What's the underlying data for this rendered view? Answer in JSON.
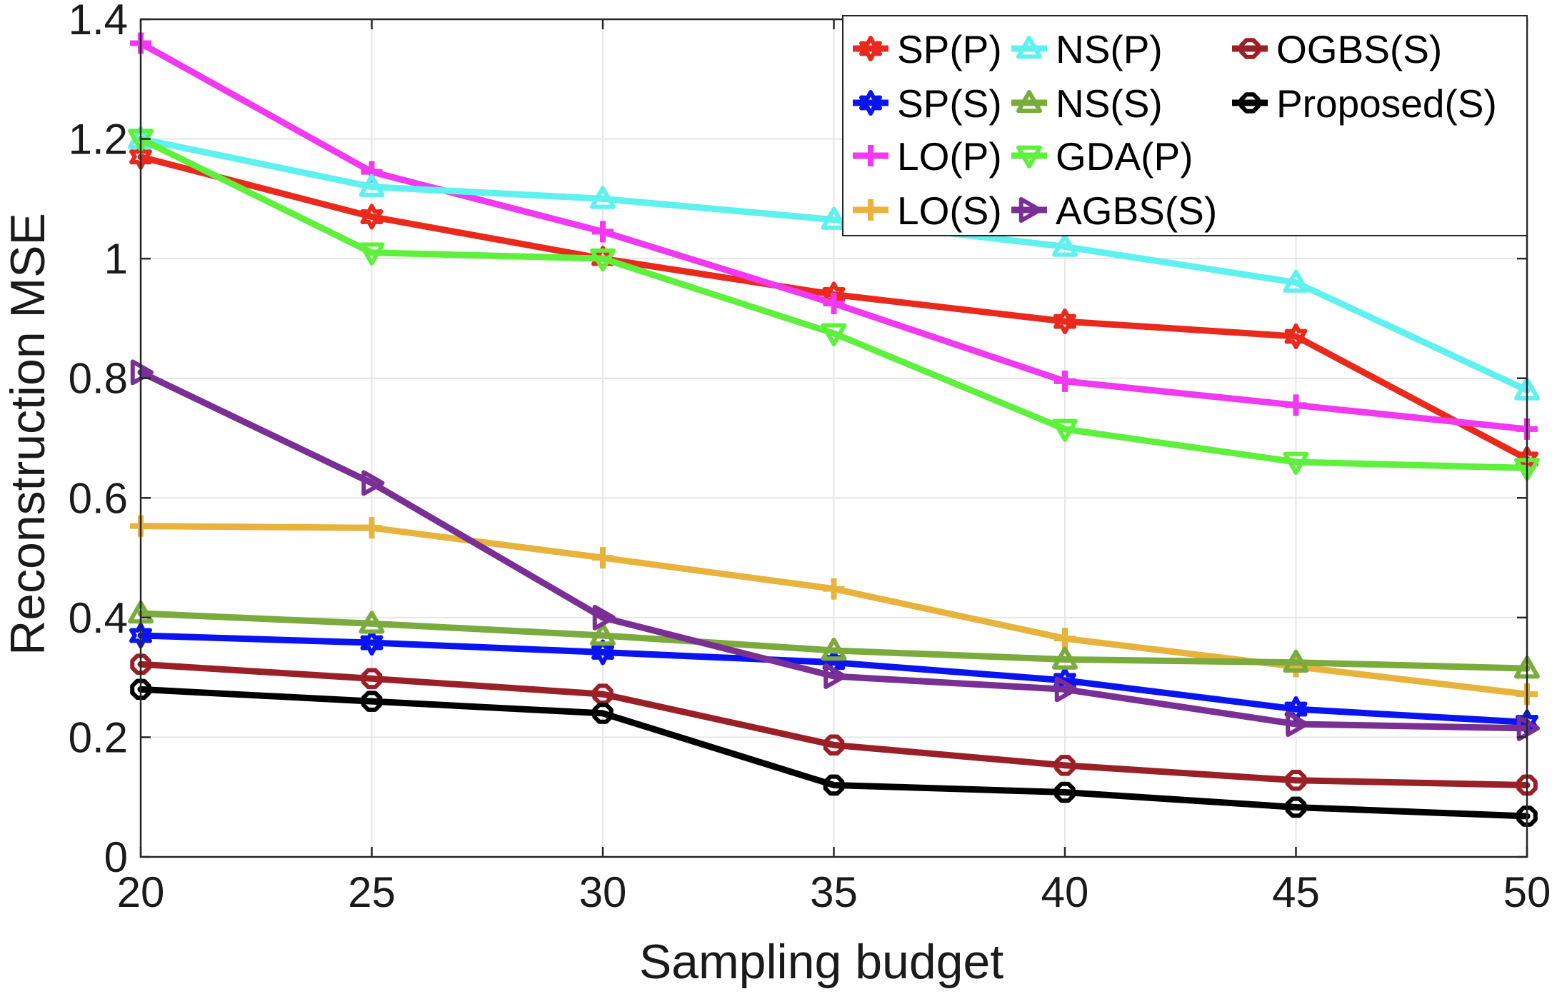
{
  "chart_data": {
    "type": "line",
    "title": "",
    "xlabel": "Sampling budget",
    "ylabel": "Reconstruction MSE",
    "xlim": [
      20,
      50
    ],
    "ylim": [
      0,
      1.4
    ],
    "x": [
      20,
      25,
      30,
      35,
      40,
      45,
      50
    ],
    "x_tick_labels": [
      "20",
      "25",
      "30",
      "35",
      "40",
      "45",
      "50"
    ],
    "y_ticks": [
      0,
      0.2,
      0.4,
      0.6,
      0.8,
      1,
      1.2,
      1.4
    ],
    "y_tick_labels": [
      "0",
      "0.2",
      "0.4",
      "0.6",
      "0.8",
      "1",
      "1.2",
      "1.4"
    ],
    "grid": true,
    "legend_position": "top-right",
    "series": [
      {
        "name": "SP(P)",
        "color": "#e8291c",
        "marker": "hexagram",
        "values": [
          1.17,
          1.07,
          1.0,
          0.94,
          0.895,
          0.87,
          0.665
        ]
      },
      {
        "name": "SP(S)",
        "color": "#0a14f0",
        "marker": "hexagram",
        "values": [
          0.37,
          0.358,
          0.342,
          0.325,
          0.295,
          0.247,
          0.225
        ]
      },
      {
        "name": "LO(P)",
        "color": "#f039f0",
        "marker": "plus",
        "values": [
          1.36,
          1.145,
          1.045,
          0.925,
          0.795,
          0.755,
          0.715
        ]
      },
      {
        "name": "LO(S)",
        "color": "#e8b33c",
        "marker": "plus",
        "values": [
          0.553,
          0.55,
          0.5,
          0.448,
          0.365,
          0.318,
          0.272
        ]
      },
      {
        "name": "NS(P)",
        "color": "#5ff0f0",
        "marker": "triangle-up",
        "values": [
          1.2,
          1.12,
          1.1,
          1.065,
          1.02,
          0.96,
          0.78
        ]
      },
      {
        "name": "NS(S)",
        "color": "#7aab3c",
        "marker": "triangle-up",
        "values": [
          0.407,
          0.39,
          0.37,
          0.345,
          0.33,
          0.325,
          0.315
        ]
      },
      {
        "name": "GDA(P)",
        "color": "#5ef03c",
        "marker": "triangle-down",
        "values": [
          1.2,
          1.01,
          1.0,
          0.875,
          0.715,
          0.66,
          0.65
        ]
      },
      {
        "name": "AGBS(S)",
        "color": "#7a2f95",
        "marker": "triangle-right",
        "values": [
          0.81,
          0.625,
          0.4,
          0.302,
          0.28,
          0.222,
          0.215
        ]
      },
      {
        "name": "OGBS(S)",
        "color": "#9a2027",
        "marker": "octagon",
        "values": [
          0.322,
          0.298,
          0.272,
          0.187,
          0.153,
          0.128,
          0.12
        ]
      },
      {
        "name": "Proposed(S)",
        "color": "#000000",
        "marker": "octagon",
        "values": [
          0.28,
          0.26,
          0.24,
          0.12,
          0.108,
          0.083,
          0.068
        ]
      }
    ]
  }
}
